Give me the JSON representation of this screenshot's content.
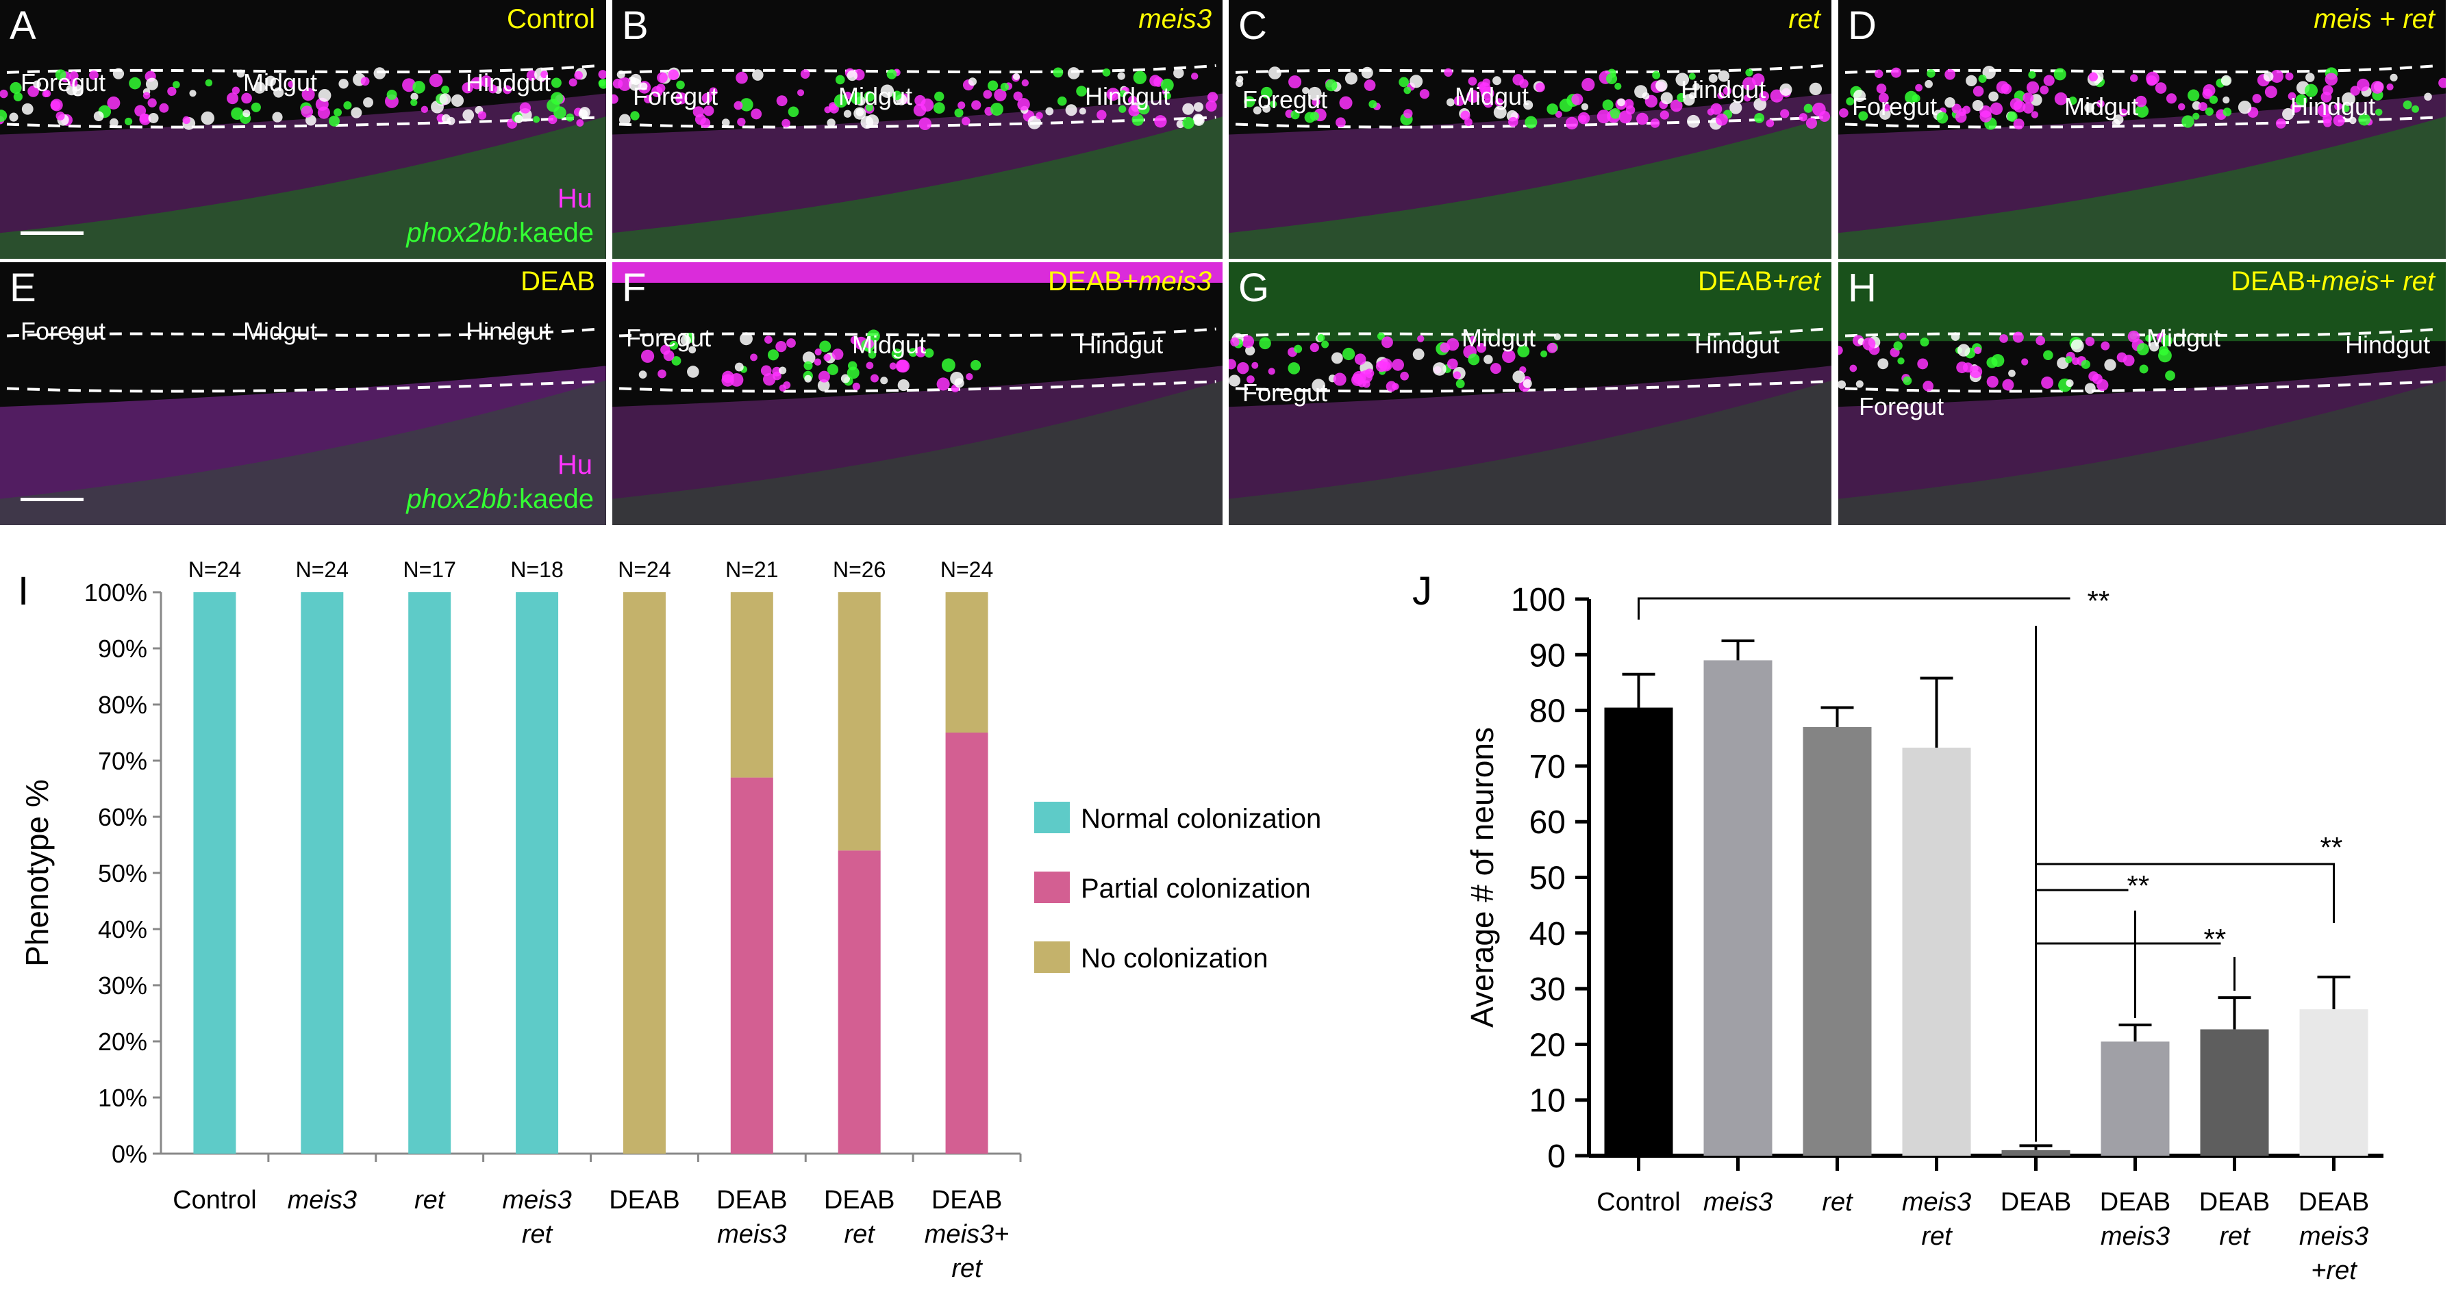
{
  "micrographs": [
    {
      "letter": "A",
      "condition": [
        "Control"
      ],
      "regions": [
        "Foregut",
        "Midgut",
        "Hindgut"
      ],
      "legend_hu": "Hu",
      "legend_phox_italic": "phox2bb",
      "legend_phox_rest": ":kaede",
      "colonized": "full"
    },
    {
      "letter": "B",
      "condition": [
        "meis3"
      ],
      "italic": [
        true
      ],
      "regions": [
        "Foregut",
        "Midgut",
        "Hindgut"
      ],
      "colonized": "full"
    },
    {
      "letter": "C",
      "condition": [
        "ret"
      ],
      "italic": [
        true
      ],
      "regions": [
        "Foregut",
        "Midgut",
        "Hindgut"
      ],
      "colonized": "full"
    },
    {
      "letter": "D",
      "condition": [
        "meis + ret"
      ],
      "italic": [
        true
      ],
      "regions": [
        "Foregut",
        "Midgut",
        "Hindgut"
      ],
      "colonized": "full"
    },
    {
      "letter": "E",
      "condition": [
        "DEAB"
      ],
      "regions": [
        "Foregut",
        "Midgut",
        "Hindgut"
      ],
      "legend_hu": "Hu",
      "legend_phox_italic": "phox2bb",
      "legend_phox_rest": ":kaede",
      "colonized": "none"
    },
    {
      "letter": "F",
      "condition": [
        "DEAB+",
        "meis3"
      ],
      "italic": [
        false,
        true
      ],
      "regions": [
        "Foregut",
        "Midgut",
        "Hindgut"
      ],
      "colonized": "partial"
    },
    {
      "letter": "G",
      "condition": [
        "DEAB+",
        "ret"
      ],
      "italic": [
        false,
        true
      ],
      "regions": [
        "Foregut",
        "Midgut",
        "Hindgut"
      ],
      "colonized": "partial"
    },
    {
      "letter": "H",
      "condition": [
        "DEAB+",
        "meis",
        "+ ",
        "ret"
      ],
      "italic": [
        false,
        true,
        false,
        true
      ],
      "regions": [
        "Foregut",
        "Midgut",
        "Hindgut"
      ],
      "colonized": "partial"
    }
  ],
  "colors": {
    "normal": "#5ecbc8",
    "partial": "#d35f92",
    "none": "#c4b26b",
    "hu_magenta": "#ff33ff",
    "kaede_green": "#33ff33",
    "condition_yellow": "#ffff00"
  },
  "chart_data": [
    {
      "panel": "I",
      "type": "bar",
      "stacked": true,
      "ylabel": "Phenotype %",
      "ylim": [
        0,
        100
      ],
      "ytick_labels": [
        "0%",
        "10%",
        "20%",
        "30%",
        "40%",
        "50%",
        "60%",
        "70%",
        "80%",
        "90%",
        "100%"
      ],
      "categories": [
        [
          "Control"
        ],
        [
          "meis3"
        ],
        [
          "ret"
        ],
        [
          "meis3",
          "ret"
        ],
        [
          "DEAB"
        ],
        [
          "DEAB",
          "meis3"
        ],
        [
          "DEAB",
          "ret"
        ],
        [
          "DEAB",
          "meis3+",
          "ret"
        ]
      ],
      "category_italic": [
        [
          false
        ],
        [
          true
        ],
        [
          true
        ],
        [
          true,
          true
        ],
        [
          false
        ],
        [
          false,
          true
        ],
        [
          false,
          true
        ],
        [
          false,
          true,
          true
        ]
      ],
      "n_labels": [
        "N=24",
        "N=24",
        "N=17",
        "N=18",
        "N=24",
        "N=21",
        "N=26",
        "N=24"
      ],
      "series": [
        {
          "name": "Normal colonization",
          "values": [
            100,
            100,
            100,
            100,
            0,
            0,
            0,
            0
          ]
        },
        {
          "name": "Partial colonization",
          "values": [
            0,
            0,
            0,
            0,
            0,
            67,
            54,
            75
          ]
        },
        {
          "name": "No colonization",
          "values": [
            0,
            0,
            0,
            0,
            100,
            33,
            46,
            25
          ]
        }
      ],
      "legend_position": "right"
    },
    {
      "panel": "J",
      "type": "bar",
      "ylabel": "Average # of neurons",
      "ylim": [
        0,
        100
      ],
      "ytick_labels": [
        "0",
        "10",
        "20",
        "30",
        "40",
        "50",
        "60",
        "70",
        "80",
        "90",
        "100"
      ],
      "categories": [
        [
          "Control"
        ],
        [
          "meis3"
        ],
        [
          "ret"
        ],
        [
          "meis3",
          "ret"
        ],
        [
          "DEAB"
        ],
        [
          "DEAB",
          "meis3"
        ],
        [
          "DEAB",
          "ret"
        ],
        [
          "DEAB",
          "meis3",
          "+ret"
        ]
      ],
      "category_italic": [
        [
          false
        ],
        [
          true
        ],
        [
          true
        ],
        [
          true,
          true
        ],
        [
          false
        ],
        [
          false,
          true
        ],
        [
          false,
          true
        ],
        [
          false,
          true,
          true
        ]
      ],
      "values": [
        80.5,
        89,
        77,
        73.3,
        1,
        20.5,
        22.7,
        26.3
      ],
      "errors": [
        6,
        3.5,
        3.5,
        12.5,
        0.8,
        3,
        5.7,
        5.8
      ],
      "bar_colors": [
        "#000000",
        "#a0a0a6",
        "#848484",
        "#d6d6d6",
        "#6a6a6a",
        "#a0a0a6",
        "#5e5e5e",
        "#e8e8e8"
      ],
      "significance_label": "**"
    }
  ]
}
